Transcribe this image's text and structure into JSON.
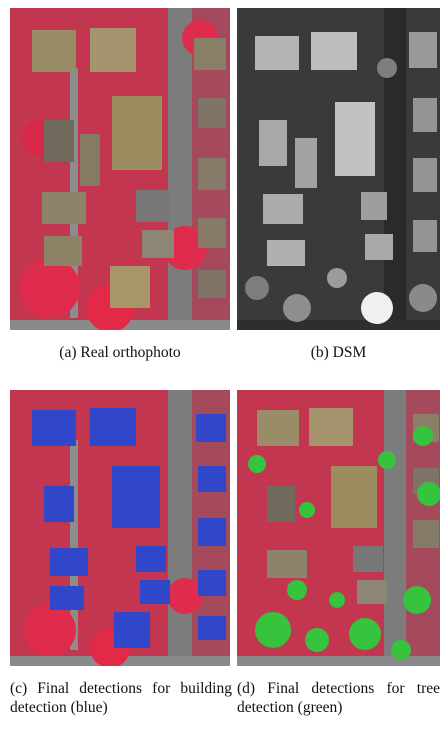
{
  "figure": {
    "panels": [
      {
        "id": "a",
        "caption": "(a) Real orthophoto"
      },
      {
        "id": "b",
        "caption": "(b) DSM"
      },
      {
        "id": "c",
        "caption": "(c) Final detections for building detection (blue)"
      },
      {
        "id": "d",
        "caption": "(d) Final detections for tree detection (green)"
      }
    ],
    "colors": {
      "vegetation": "#d42a4a",
      "roof": "#9a8c66",
      "road": "#7c7c7c",
      "dsm_ground": "#3a3a3a",
      "dsm_building": "#b4b4b4",
      "building_detection": "#2f47c8",
      "tree_detection": "#36c43e"
    }
  }
}
